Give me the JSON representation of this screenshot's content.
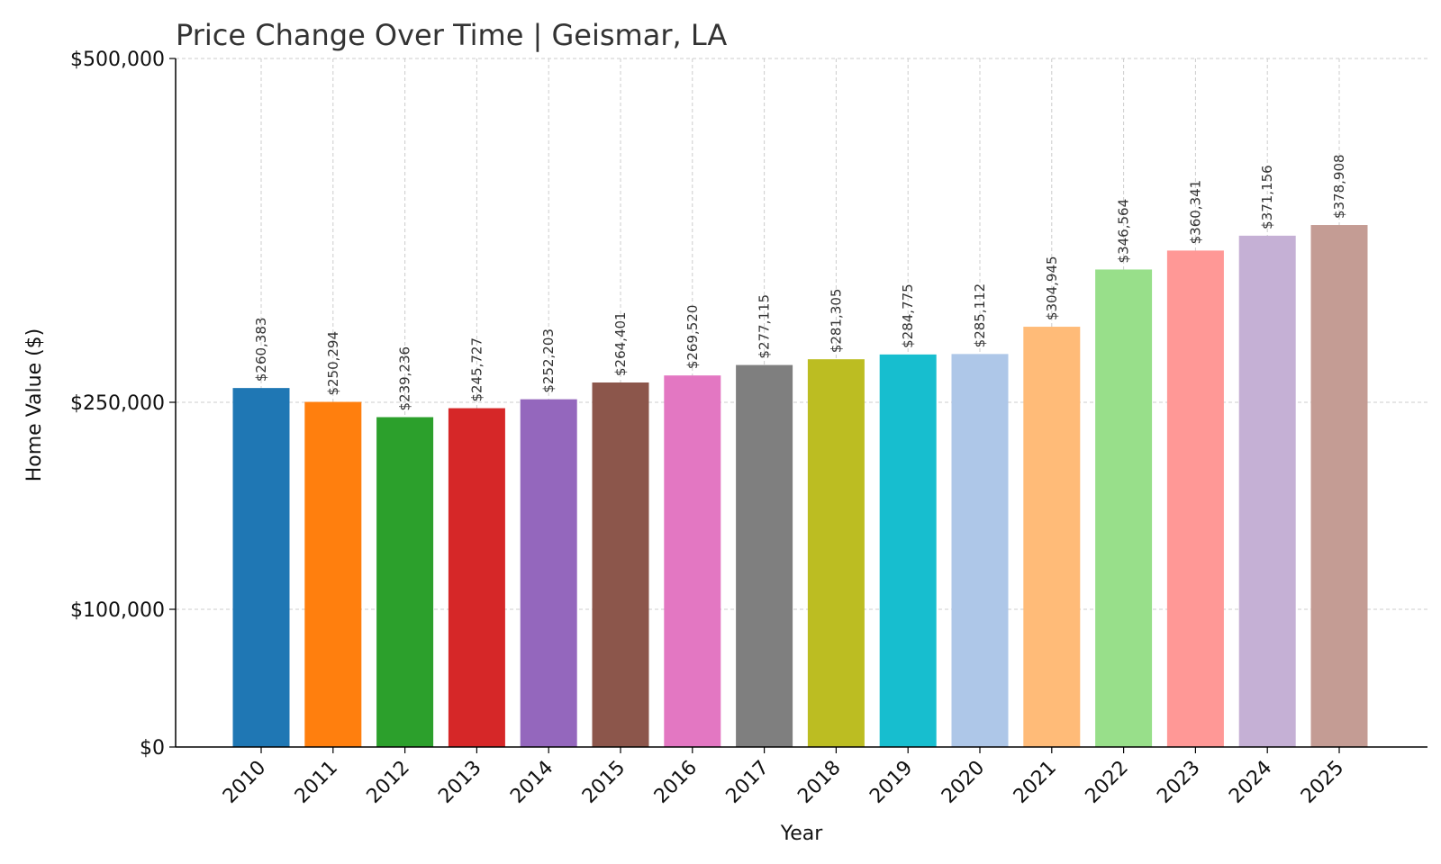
{
  "chart_data": {
    "type": "bar",
    "title": "Price Change Over Time | Geismar, LA",
    "xlabel": "Year",
    "ylabel": "Home Value ($)",
    "categories": [
      "2010",
      "2011",
      "2012",
      "2013",
      "2014",
      "2015",
      "2016",
      "2017",
      "2018",
      "2019",
      "2020",
      "2021",
      "2022",
      "2023",
      "2024",
      "2025"
    ],
    "values": [
      260383,
      250294,
      239236,
      245727,
      252203,
      264401,
      269520,
      277115,
      281305,
      284775,
      285112,
      304945,
      346564,
      360341,
      371156,
      378908
    ],
    "value_labels": [
      "$260,383",
      "$250,294",
      "$239,236",
      "$245,727",
      "$252,203",
      "$264,401",
      "$269,520",
      "$277,115",
      "$281,305",
      "$284,775",
      "$285,112",
      "$304,945",
      "$346,564",
      "$360,341",
      "$371,156",
      "$378,908"
    ],
    "colors": [
      "#1f77b4",
      "#ff7f0e",
      "#2ca02c",
      "#d62728",
      "#9467bd",
      "#8c564b",
      "#e377c2",
      "#7f7f7f",
      "#bcbd22",
      "#17becf",
      "#aec7e8",
      "#ffbb78",
      "#98df8a",
      "#ff9896",
      "#c5b0d5",
      "#c49c94"
    ],
    "yticks": [
      0,
      100000,
      250000,
      500000
    ],
    "ytick_labels": [
      "$0",
      "$100,000",
      "$250,000",
      "$500,000"
    ],
    "ylim": [
      0,
      500000
    ],
    "grid": true
  }
}
